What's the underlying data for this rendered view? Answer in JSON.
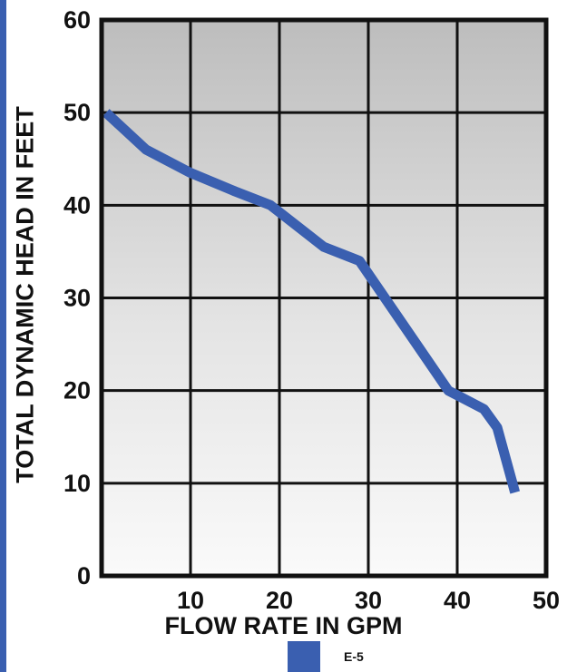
{
  "chart_data": {
    "type": "line",
    "title": "",
    "xlabel": "FLOW RATE IN GPM",
    "ylabel": "TOTAL DYNAMIC HEAD IN FEET",
    "xlim": [
      0,
      50
    ],
    "ylim": [
      0,
      60
    ],
    "x_ticks": [
      "10",
      "20",
      "30",
      "40",
      "50"
    ],
    "y_ticks": [
      "0",
      "10",
      "20",
      "30",
      "40",
      "50",
      "60"
    ],
    "grid": true,
    "legend_position": "bottom",
    "series": [
      {
        "name": "E-5",
        "color": "#3a5fb0",
        "x": [
          0.5,
          5,
          10,
          15,
          19,
          25,
          29,
          34,
          39,
          43,
          44.5,
          46.5
        ],
        "y": [
          50,
          46,
          43.5,
          41.5,
          40,
          35.5,
          34,
          27,
          20,
          18,
          16,
          9
        ]
      }
    ]
  }
}
